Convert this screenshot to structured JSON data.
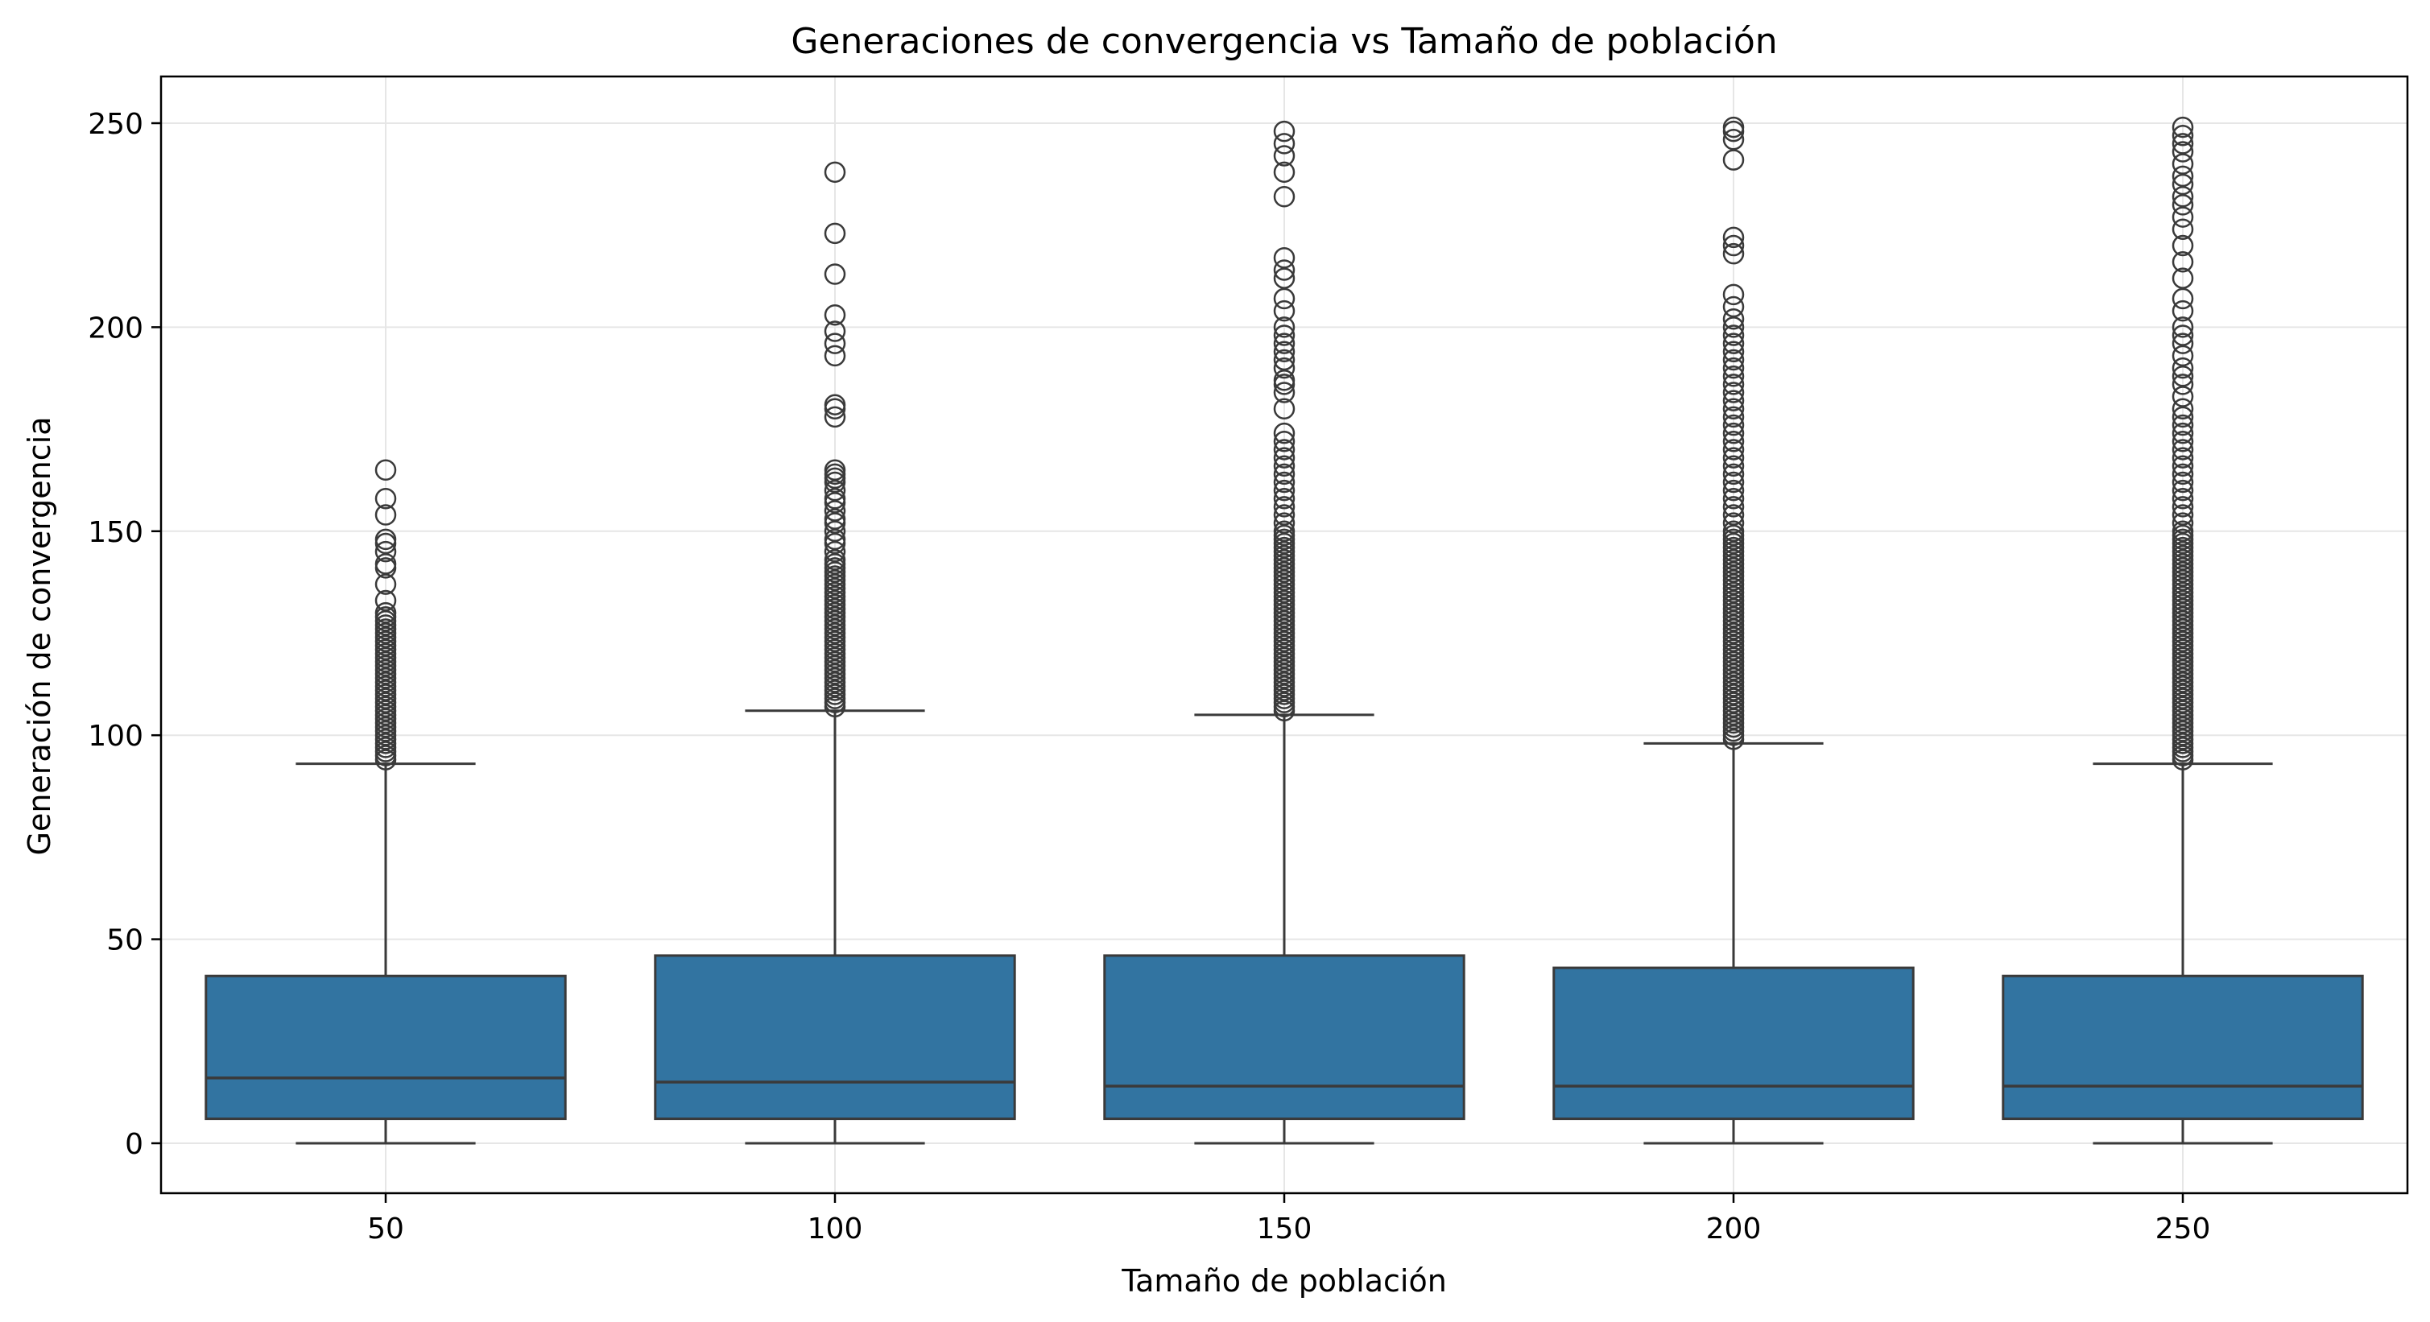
{
  "chart_data": {
    "type": "boxplot",
    "title": "Generaciones de convergencia vs Tamaño de población",
    "xlabel": "Tamaño de población",
    "ylabel": "Generación de convergencia",
    "ylim": [
      -12,
      262
    ],
    "yticks": [
      0,
      50,
      100,
      150,
      200,
      250
    ],
    "grid": true,
    "box_color": "#3274a1",
    "line_color": "#3a3a3a",
    "categories": [
      "50",
      "100",
      "150",
      "200",
      "250"
    ],
    "boxes": [
      {
        "category": "50",
        "whisker_low": 0,
        "q1": 6,
        "median": 16,
        "q3": 41,
        "whisker_high": 93,
        "outliers": [
          94,
          95,
          96,
          97,
          98,
          99,
          100,
          101,
          102,
          103,
          104,
          105,
          106,
          107,
          108,
          109,
          110,
          111,
          112,
          113,
          114,
          115,
          116,
          117,
          118,
          119,
          120,
          121,
          122,
          123,
          124,
          125,
          126,
          127,
          128,
          129,
          130,
          133,
          137,
          141,
          142,
          145,
          147,
          148,
          154,
          158,
          165
        ]
      },
      {
        "category": "100",
        "whisker_low": 0,
        "q1": 6,
        "median": 15,
        "q3": 46,
        "whisker_high": 106,
        "outliers": [
          107,
          108,
          109,
          110,
          111,
          112,
          113,
          114,
          115,
          116,
          117,
          118,
          119,
          120,
          121,
          122,
          123,
          124,
          125,
          126,
          127,
          128,
          129,
          130,
          131,
          132,
          133,
          134,
          135,
          136,
          137,
          138,
          139,
          140,
          141,
          142,
          143,
          145,
          147,
          148,
          150,
          152,
          153,
          155,
          157,
          158,
          160,
          162,
          163,
          164,
          165,
          178,
          180,
          181,
          193,
          196,
          199,
          203,
          213,
          223,
          238
        ]
      },
      {
        "category": "150",
        "whisker_low": 0,
        "q1": 6,
        "median": 14,
        "q3": 46,
        "whisker_high": 105,
        "outliers": [
          106,
          107,
          108,
          109,
          110,
          111,
          112,
          113,
          114,
          115,
          116,
          117,
          118,
          119,
          120,
          121,
          122,
          123,
          124,
          125,
          126,
          127,
          128,
          129,
          130,
          131,
          132,
          133,
          134,
          135,
          136,
          137,
          138,
          139,
          140,
          141,
          142,
          143,
          144,
          145,
          146,
          147,
          148,
          149,
          150,
          152,
          154,
          156,
          158,
          160,
          162,
          164,
          166,
          168,
          170,
          172,
          174,
          180,
          184,
          186,
          187,
          190,
          192,
          194,
          196,
          198,
          200,
          204,
          207,
          212,
          214,
          217,
          232,
          238,
          242,
          245,
          248
        ]
      },
      {
        "category": "200",
        "whisker_low": 0,
        "q1": 6,
        "median": 14,
        "q3": 43,
        "whisker_high": 98,
        "outliers": [
          99,
          100,
          101,
          102,
          103,
          104,
          105,
          106,
          107,
          108,
          109,
          110,
          111,
          112,
          113,
          114,
          115,
          116,
          117,
          118,
          119,
          120,
          121,
          122,
          123,
          124,
          125,
          126,
          127,
          128,
          129,
          130,
          131,
          132,
          133,
          134,
          135,
          136,
          137,
          138,
          139,
          140,
          141,
          142,
          143,
          144,
          145,
          146,
          147,
          148,
          149,
          150,
          152,
          154,
          156,
          158,
          160,
          162,
          164,
          166,
          168,
          170,
          172,
          174,
          176,
          178,
          180,
          182,
          184,
          186,
          188,
          190,
          192,
          194,
          196,
          198,
          200,
          202,
          205,
          208,
          218,
          220,
          222,
          241,
          246,
          248,
          249
        ]
      },
      {
        "category": "250",
        "whisker_low": 0,
        "q1": 6,
        "median": 14,
        "q3": 41,
        "whisker_high": 93,
        "outliers": [
          94,
          95,
          96,
          97,
          98,
          99,
          100,
          101,
          102,
          103,
          104,
          105,
          106,
          107,
          108,
          109,
          110,
          111,
          112,
          113,
          114,
          115,
          116,
          117,
          118,
          119,
          120,
          121,
          122,
          123,
          124,
          125,
          126,
          127,
          128,
          129,
          130,
          131,
          132,
          133,
          134,
          135,
          136,
          137,
          138,
          139,
          140,
          141,
          142,
          143,
          144,
          145,
          146,
          147,
          148,
          149,
          150,
          152,
          154,
          156,
          158,
          160,
          162,
          164,
          166,
          168,
          170,
          172,
          174,
          176,
          178,
          180,
          183,
          186,
          188,
          190,
          193,
          196,
          198,
          200,
          204,
          207,
          212,
          216,
          220,
          224,
          227,
          230,
          232,
          235,
          237,
          240,
          243,
          245,
          247,
          249
        ]
      }
    ]
  }
}
